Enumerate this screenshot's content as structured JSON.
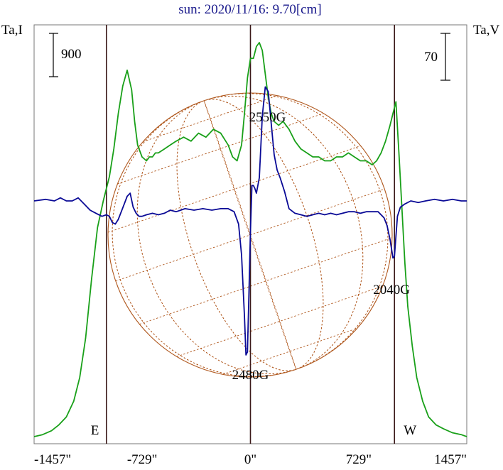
{
  "chart_data": {
    "type": "line",
    "title": "sun: 2020/11/16: 9.70[cm]",
    "left_axis_label": "Ta,I",
    "right_axis_label": "Ta,V",
    "left_scale_bar": "900",
    "right_scale_bar": "70",
    "x_ticks": [
      {
        "value": -1457,
        "label": "-1457\""
      },
      {
        "value": -729,
        "label": "-729\""
      },
      {
        "value": 0,
        "label": "0\""
      },
      {
        "value": 729,
        "label": "729\""
      },
      {
        "value": 1457,
        "label": "1457\""
      }
    ],
    "xlim": [
      -1457,
      1457
    ],
    "limb_markers": [
      {
        "label": "E",
        "x": -970
      },
      {
        "label": "W",
        "x": 970
      }
    ],
    "annotations": [
      {
        "text": "2550G",
        "x": 115,
        "series": "Stokes I"
      },
      {
        "text": "2480G",
        "x": 0,
        "series": "Stokes V"
      },
      {
        "text": "2040G",
        "x": 955,
        "series": "Stokes V"
      }
    ],
    "colors": {
      "stokes_i": "#19a019",
      "stokes_v": "#0a0a96",
      "sun_grid": "#b0581e",
      "marker_lines": "#3a1818",
      "title": "#1a1a8c"
    },
    "series": [
      {
        "key": "I",
        "normalized": true,
        "x": [
          -1457,
          -1400,
          -1340,
          -1290,
          -1240,
          -1190,
          -1150,
          -1110,
          -1070,
          -1030,
          -990,
          -970,
          -950,
          -920,
          -890,
          -860,
          -830,
          -800,
          -780,
          -760,
          -730,
          -700,
          -680,
          -660,
          -640,
          -620,
          -580,
          -540,
          -500,
          -450,
          -400,
          -350,
          -300,
          -250,
          -200,
          -150,
          -120,
          -90,
          -60,
          -40,
          -20,
          0,
          20,
          40,
          60,
          80,
          100,
          120,
          140,
          160,
          190,
          220,
          260,
          300,
          340,
          380,
          420,
          460,
          500,
          540,
          580,
          620,
          660,
          700,
          740,
          780,
          820,
          850,
          880,
          910,
          940,
          960,
          980,
          1000,
          1020,
          1040,
          1060,
          1090,
          1120,
          1160,
          1200,
          1250,
          1300,
          1360,
          1420,
          1457
        ],
        "y": [
          0.0,
          0.005,
          0.015,
          0.03,
          0.05,
          0.09,
          0.15,
          0.25,
          0.4,
          0.53,
          0.6,
          0.63,
          0.66,
          0.73,
          0.82,
          0.89,
          0.93,
          0.88,
          0.8,
          0.74,
          0.71,
          0.7,
          0.71,
          0.71,
          0.72,
          0.72,
          0.73,
          0.74,
          0.75,
          0.76,
          0.75,
          0.77,
          0.76,
          0.78,
          0.77,
          0.74,
          0.71,
          0.7,
          0.74,
          0.82,
          0.91,
          0.96,
          0.96,
          0.99,
          1.0,
          0.98,
          0.92,
          0.86,
          0.82,
          0.8,
          0.79,
          0.8,
          0.78,
          0.75,
          0.73,
          0.72,
          0.71,
          0.71,
          0.7,
          0.7,
          0.71,
          0.71,
          0.72,
          0.71,
          0.7,
          0.7,
          0.69,
          0.7,
          0.72,
          0.75,
          0.79,
          0.82,
          0.85,
          0.72,
          0.58,
          0.44,
          0.33,
          0.23,
          0.15,
          0.09,
          0.05,
          0.03,
          0.02,
          0.01,
          0.005,
          0.0
        ]
      },
      {
        "key": "V",
        "normalized": true,
        "x": [
          -1457,
          -1380,
          -1320,
          -1280,
          -1240,
          -1200,
          -1160,
          -1120,
          -1080,
          -1040,
          -1000,
          -970,
          -950,
          -930,
          -910,
          -890,
          -870,
          -850,
          -830,
          -810,
          -790,
          -770,
          -750,
          -730,
          -700,
          -660,
          -620,
          -580,
          -540,
          -500,
          -440,
          -380,
          -320,
          -260,
          -200,
          -150,
          -110,
          -80,
          -60,
          -40,
          -30,
          -20,
          -10,
          0,
          10,
          20,
          30,
          40,
          60,
          80,
          100,
          120,
          140,
          160,
          180,
          200,
          230,
          260,
          300,
          340,
          380,
          420,
          460,
          500,
          540,
          580,
          620,
          660,
          700,
          740,
          780,
          820,
          860,
          900,
          920,
          940,
          960,
          970,
          990,
          1010,
          1040,
          1080,
          1130,
          1180,
          1240,
          1300,
          1360,
          1420,
          1457
        ],
        "y": [
          0.0,
          0.01,
          0.0,
          0.02,
          0.0,
          0.0,
          0.02,
          -0.02,
          -0.06,
          -0.08,
          -0.1,
          -0.09,
          -0.1,
          -0.14,
          -0.15,
          -0.12,
          -0.07,
          -0.02,
          0.03,
          0.05,
          -0.04,
          -0.08,
          -0.1,
          -0.1,
          -0.09,
          -0.08,
          -0.09,
          -0.08,
          -0.06,
          -0.07,
          -0.05,
          -0.06,
          -0.05,
          -0.06,
          -0.05,
          -0.05,
          -0.07,
          -0.15,
          -0.35,
          -0.75,
          -1.0,
          -0.98,
          -0.6,
          -0.2,
          0.1,
          0.1,
          0.08,
          0.05,
          0.15,
          0.55,
          0.74,
          0.71,
          0.5,
          0.3,
          0.2,
          0.15,
          0.06,
          -0.05,
          -0.08,
          -0.09,
          -0.1,
          -0.09,
          -0.08,
          -0.09,
          -0.08,
          -0.09,
          -0.08,
          -0.07,
          -0.07,
          -0.08,
          -0.07,
          -0.07,
          -0.07,
          -0.11,
          -0.16,
          -0.25,
          -0.37,
          -0.36,
          -0.1,
          -0.04,
          -0.02,
          0.0,
          -0.01,
          0.0,
          0.01,
          0.0,
          0.01,
          0.0,
          0.0
        ]
      }
    ]
  }
}
